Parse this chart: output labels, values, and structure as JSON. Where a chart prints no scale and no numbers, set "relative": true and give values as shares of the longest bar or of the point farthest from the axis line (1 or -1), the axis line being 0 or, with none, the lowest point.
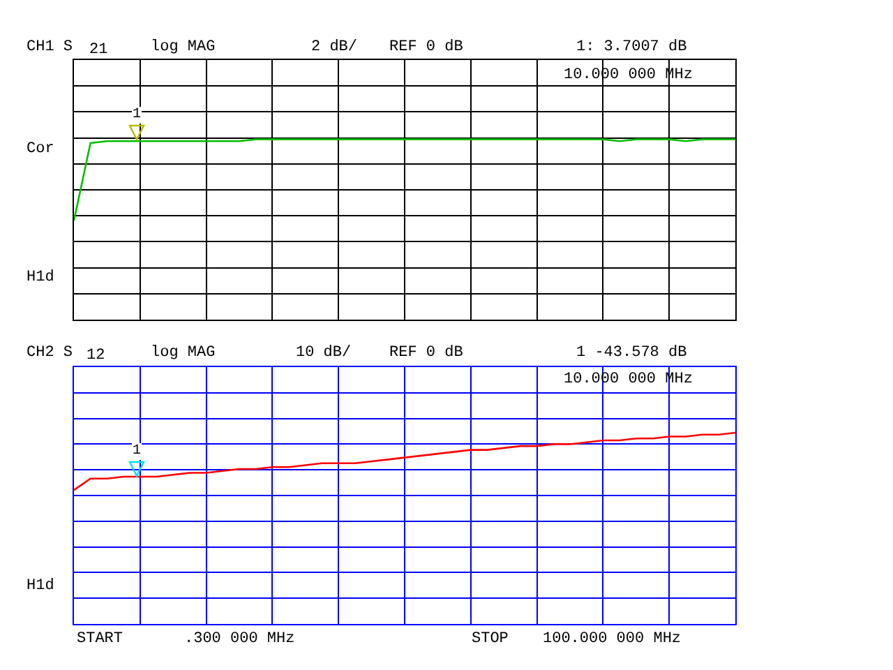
{
  "chart_data": [
    {
      "type": "line",
      "relative": true,
      "grid": true,
      "marker": "none",
      "line_style": "solid",
      "categories": [
        null,
        null,
        null,
        null,
        null,
        null,
        null,
        null,
        null,
        null,
        null,
        null,
        null,
        null,
        null,
        null,
        null,
        null,
        null,
        null,
        null,
        null,
        null,
        null,
        null,
        null,
        null,
        null,
        null,
        null,
        null,
        null,
        null,
        null,
        null,
        null,
        null,
        null,
        null,
        null,
        null
      ],
      "series": [
        {
          "color": "#00c000",
          "values": [
            0.55,
            0.98,
            0.99,
            0.99,
            0.99,
            0.99,
            0.99,
            0.99,
            0.99,
            0.99,
            0.99,
            1,
            1,
            1,
            1,
            1,
            1,
            1,
            1,
            1,
            1,
            1,
            1,
            1,
            1,
            1,
            1,
            1,
            1,
            1,
            1,
            1,
            1,
            0.99,
            1,
            1,
            1,
            0.99,
            1,
            1,
            1
          ]
        }
      ],
      "annotations": [
        "CH1 S",
        "21",
        "log MAG",
        "2 dB/",
        "REF 0 dB",
        "1: 3.7007 dB",
        "10.000 000 MHz",
        "Cor",
        "H1d",
        "1"
      ]
    },
    {
      "type": "line",
      "relative": true,
      "grid": true,
      "marker": "none",
      "line_style": "solid",
      "categories": [
        null,
        null,
        null,
        null,
        null,
        null,
        null,
        null,
        null,
        null,
        null,
        null,
        null,
        null,
        null,
        null,
        null,
        null,
        null,
        null,
        null,
        null,
        null,
        null,
        null,
        null,
        null,
        null,
        null,
        null,
        null,
        null,
        null,
        null,
        null,
        null,
        null,
        null,
        null,
        null,
        null
      ],
      "series": [
        {
          "color": "#ff0000",
          "values": [
            0.7,
            0.76,
            0.76,
            0.77,
            0.77,
            0.77,
            0.78,
            0.79,
            0.79,
            0.8,
            0.81,
            0.81,
            0.82,
            0.82,
            0.83,
            0.84,
            0.84,
            0.84,
            0.85,
            0.86,
            0.87,
            0.88,
            0.89,
            0.9,
            0.91,
            0.91,
            0.92,
            0.93,
            0.93,
            0.94,
            0.94,
            0.95,
            0.96,
            0.96,
            0.97,
            0.97,
            0.98,
            0.98,
            0.99,
            0.99,
            1
          ]
        }
      ],
      "annotations": [
        "CH2 S",
        "12",
        "log MAG",
        "10 dB/",
        "REF 0 dB",
        "1 -43.578 dB",
        "10.000 000 MHz",
        "H1d",
        "START",
        ".300 000 MHz",
        "STOP",
        "100.000 000 MHz",
        "1"
      ]
    }
  ]
}
